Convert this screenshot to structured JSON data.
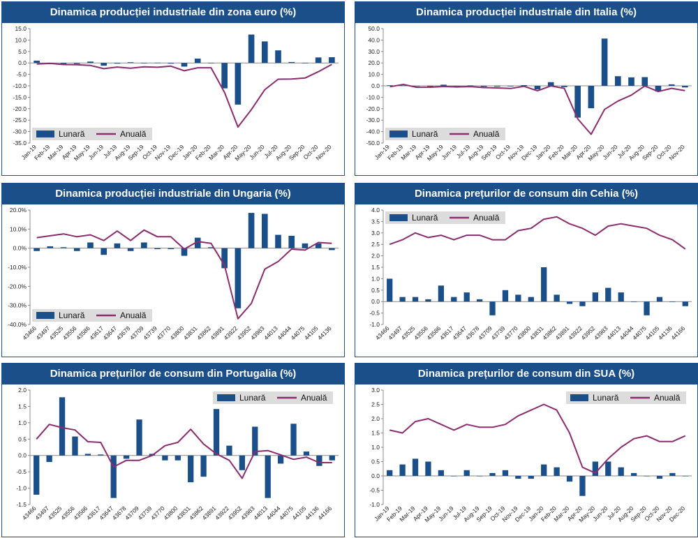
{
  "colors": {
    "bar": "#1a4f8a",
    "line": "#8b2c6e",
    "header_bg": "#1a4f8a",
    "header_text": "#ffffff",
    "legend_bg": "#dcdcdc"
  },
  "chart_data": [
    {
      "type": "bar+line",
      "title": "Dinamica producției industriale din zona euro (%)",
      "legend_position": "bottom-left",
      "grid": false,
      "ylim": [
        -35,
        15
      ],
      "yticks": [
        "15.0",
        "10.0",
        "5.0",
        "0.0",
        "-5.0",
        "-10.0",
        "-15.0",
        "-20.0",
        "-25.0",
        "-30.0",
        "-35.0"
      ],
      "categories": [
        "Jan-19",
        "Feb-19",
        "Mar-19",
        "Apr-19",
        "May-19",
        "Jun-19",
        "Jul-19",
        "Aug-19",
        "Sep-19",
        "Oct-19",
        "Nov-19",
        "Dec-19",
        "Jan-20",
        "Feb-20",
        "Mar-20",
        "Apr-20",
        "May-20",
        "Jun-20",
        "Jul-20",
        "Aug-20",
        "Sep-20",
        "Oct-20",
        "Nov-20"
      ],
      "series": [
        {
          "name": "Lunară",
          "kind": "bar",
          "values": [
            1.0,
            -0.3,
            -0.5,
            -0.4,
            0.6,
            -1.2,
            -0.3,
            0.3,
            -0.2,
            0.1,
            -0.3,
            -1.6,
            1.9,
            -0.1,
            -11.1,
            -18.2,
            12.4,
            9.4,
            5.5,
            0.4,
            -0.1,
            2.4,
            2.5
          ]
        },
        {
          "name": "Anuală",
          "kind": "line",
          "values": [
            -0.5,
            -0.2,
            -0.7,
            -0.8,
            -1.1,
            -2.5,
            -1.8,
            -2.3,
            -1.7,
            -1.9,
            -1.4,
            -3.4,
            -2.1,
            -2.1,
            -12.9,
            -28.0,
            -20.4,
            -11.7,
            -7.1,
            -7.0,
            -6.6,
            -3.8,
            -0.6
          ]
        }
      ]
    },
    {
      "type": "bar+line",
      "title": "Dinamica producției industriale din Italia (%)",
      "legend_position": "bottom-left",
      "grid": false,
      "ylim": [
        -50,
        50
      ],
      "yticks": [
        "50.0",
        "40.0",
        "30.0",
        "20.0",
        "10.0",
        "0.0",
        "-10.0",
        "-20.0",
        "-30.0",
        "-40.0",
        "-50.0"
      ],
      "categories": [
        "Jan-19",
        "Feb-19",
        "Mar-19",
        "Apr-19",
        "May-19",
        "Jun-19",
        "Jul-19",
        "Aug-19",
        "Sep-19",
        "Oct-19",
        "Nov-19",
        "Dec-19",
        "Jan-20",
        "Feb-20",
        "Mar-20",
        "Apr-20",
        "May-20",
        "Jun-20",
        "Jul-20",
        "Aug-20",
        "Sep-20",
        "Oct-20",
        "Nov-20"
      ],
      "series": [
        {
          "name": "Lunară",
          "kind": "bar",
          "values": [
            0.5,
            0.3,
            -0.4,
            -0.6,
            1.0,
            -0.4,
            0.4,
            -0.8,
            -0.7,
            -0.5,
            0.6,
            -3.1,
            3.2,
            -1.1,
            -27.8,
            -19.6,
            41.3,
            8.4,
            7.4,
            7.6,
            -5.0,
            1.3,
            -1.4
          ]
        },
        {
          "name": "Anuală",
          "kind": "line",
          "values": [
            -0.8,
            1.2,
            -1.3,
            -1.2,
            -0.6,
            -1.0,
            -0.7,
            -1.5,
            -1.8,
            -2.3,
            -0.4,
            -4.3,
            -0.1,
            -2.2,
            -28.9,
            -42.4,
            -20.6,
            -13.3,
            -8.1,
            -0.1,
            -5.0,
            -2.2,
            -4.2
          ]
        }
      ]
    },
    {
      "type": "bar+line",
      "title": "Dinamica producției industriale din Ungaria (%)",
      "legend_position": "bottom-left",
      "grid": false,
      "ylim": [
        -40,
        20
      ],
      "yticks": [
        "20.0%",
        "10.0%",
        "0.0%",
        "-10.0%",
        "-20.0%",
        "-30.0%",
        "-40.0%"
      ],
      "categories": [
        "43466",
        "43497",
        "43525",
        "43556",
        "43586",
        "43617",
        "43647",
        "43678",
        "43709",
        "43739",
        "43770",
        "43800",
        "43831",
        "43862",
        "43891",
        "43922",
        "43952",
        "43983",
        "44013",
        "44044",
        "44075",
        "44105",
        "44136"
      ],
      "series": [
        {
          "name": "Lunară",
          "kind": "bar",
          "values": [
            -1.5,
            1.0,
            0.5,
            -1.5,
            3.0,
            -3.5,
            2.5,
            -1.5,
            3.0,
            -0.5,
            -0.5,
            -4.0,
            5.5,
            0.5,
            -10.5,
            -31.5,
            18.5,
            18.0,
            7.0,
            6.5,
            2.5,
            2.5,
            -1.0
          ]
        },
        {
          "name": "Anuală",
          "kind": "line",
          "values": [
            5.5,
            6.5,
            7.5,
            6.0,
            7.0,
            4.0,
            9.0,
            4.0,
            9.5,
            6.0,
            6.0,
            -0.5,
            3.5,
            2.5,
            -9.0,
            -37.0,
            -29.0,
            -11.0,
            -7.0,
            -0.5,
            -1.0,
            3.0,
            2.5
          ]
        }
      ]
    },
    {
      "type": "bar+line",
      "title": "Dinamica prețurilor de consum din Cehia (%)",
      "legend_position": "top-left",
      "grid": false,
      "ylim": [
        -1.0,
        4.0
      ],
      "yticks": [
        "4.0",
        "3.5",
        "3.0",
        "2.5",
        "2.0",
        "1.5",
        "1.0",
        "0.5",
        "0.0",
        "-0.5",
        "-1.0"
      ],
      "categories": [
        "43466",
        "43497",
        "43525",
        "43556",
        "43586",
        "43617",
        "43647",
        "43678",
        "43709",
        "43739",
        "43770",
        "43800",
        "43831",
        "43862",
        "43891",
        "43922",
        "43952",
        "43983",
        "44013",
        "44044",
        "44075",
        "44105",
        "44136",
        "44166"
      ],
      "series": [
        {
          "name": "Lunară",
          "kind": "bar",
          "values": [
            1.0,
            0.2,
            0.2,
            0.1,
            0.7,
            0.2,
            0.4,
            0.1,
            -0.6,
            0.5,
            0.3,
            0.2,
            1.5,
            0.3,
            -0.1,
            -0.2,
            0.4,
            0.6,
            0.4,
            0.0,
            -0.6,
            0.2,
            0.0,
            -0.2
          ]
        },
        {
          "name": "Anuală",
          "kind": "line",
          "values": [
            2.5,
            2.7,
            3.0,
            2.8,
            2.9,
            2.7,
            2.9,
            2.9,
            2.7,
            2.7,
            3.1,
            3.2,
            3.6,
            3.7,
            3.4,
            3.2,
            2.9,
            3.3,
            3.4,
            3.3,
            3.2,
            2.9,
            2.7,
            2.3
          ]
        }
      ]
    },
    {
      "type": "bar+line",
      "title": "Dinamica prețurilor de consum din Portugalia (%)",
      "legend_position": "top-right",
      "grid": false,
      "ylim": [
        -1.5,
        2.0
      ],
      "yticks": [
        "2.0",
        "1.5",
        "1.0",
        "0.5",
        "0.0",
        "-0.5",
        "-1.0",
        "-1.5"
      ],
      "categories": [
        "43466",
        "43497",
        "43525",
        "43556",
        "43586",
        "43617",
        "43647",
        "43678",
        "43709",
        "43739",
        "43770",
        "43800",
        "43831",
        "43862",
        "43891",
        "43922",
        "43952",
        "43983",
        "44013",
        "44044",
        "44075",
        "44105",
        "44136",
        "44166"
      ],
      "series": [
        {
          "name": "Lunară",
          "kind": "bar",
          "values": [
            -1.2,
            -0.2,
            1.78,
            0.58,
            0.05,
            0.03,
            -1.3,
            -0.1,
            1.1,
            0.05,
            -0.15,
            -0.15,
            -0.82,
            -0.65,
            1.42,
            0.3,
            -0.45,
            0.88,
            -1.3,
            -0.25,
            0.97,
            0.12,
            -0.32,
            -0.15
          ]
        },
        {
          "name": "Anuală",
          "kind": "line",
          "values": [
            0.5,
            0.95,
            0.85,
            0.78,
            0.42,
            0.4,
            -0.35,
            -0.15,
            -0.15,
            0.0,
            0.3,
            0.4,
            0.8,
            0.35,
            0.05,
            -0.15,
            -0.7,
            0.12,
            0.15,
            0.02,
            -0.12,
            -0.05,
            -0.22,
            -0.22
          ]
        }
      ]
    },
    {
      "type": "bar+line",
      "title": "Dinamica prețurilor de consum din SUA (%)",
      "legend_position": "top-right",
      "grid": false,
      "ylim": [
        -1.0,
        3.0
      ],
      "yticks": [
        "3.0",
        "2.5",
        "2.0",
        "1.5",
        "1.0",
        "0.5",
        "0.0",
        "-0.5",
        "-1.0"
      ],
      "categories": [
        "Jan-19",
        "Feb-19",
        "Mar-19",
        "Apr-19",
        "May-19",
        "Jun-19",
        "Jul-19",
        "Aug-19",
        "Sep-19",
        "Oct-19",
        "Nov-19",
        "Dec-19",
        "Jan-20",
        "Feb-20",
        "Mar-20",
        "Apr-20",
        "May-20",
        "Jun-20",
        "Jul-20",
        "Aug-20",
        "Sep-20",
        "Oct-20",
        "Nov-20",
        "Dec-20"
      ],
      "series": [
        {
          "name": "Lunară",
          "kind": "bar",
          "values": [
            0.2,
            0.4,
            0.6,
            0.5,
            0.2,
            0.0,
            0.2,
            0.0,
            0.1,
            0.2,
            -0.1,
            -0.1,
            0.4,
            0.3,
            -0.2,
            -0.7,
            0.5,
            0.5,
            0.3,
            0.1,
            0.0,
            -0.1,
            0.1,
            0.0
          ]
        },
        {
          "name": "Anuală",
          "kind": "line",
          "values": [
            1.6,
            1.5,
            1.9,
            2.0,
            1.8,
            1.6,
            1.8,
            1.7,
            1.7,
            1.8,
            2.1,
            2.3,
            2.5,
            2.3,
            1.5,
            0.3,
            0.1,
            0.6,
            1.0,
            1.3,
            1.4,
            1.2,
            1.2,
            1.4
          ]
        }
      ]
    }
  ]
}
